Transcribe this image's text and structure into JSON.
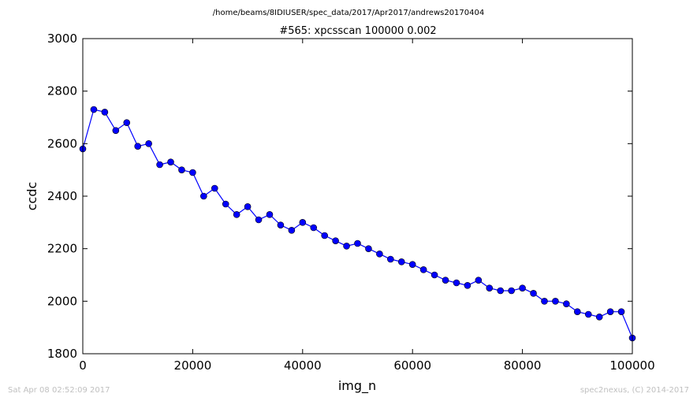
{
  "header": {
    "path": "/home/beams/8IDIUSER/spec_data/2017/Apr2017/andrews20170404"
  },
  "footer": {
    "timestamp": "Sat Apr 08 02:52:09 2017",
    "credit": "spec2nexus, (C) 2014-2017"
  },
  "chart_data": {
    "type": "line",
    "title": "#565: xpcsscan 100000 0.002",
    "xlabel": "img_n",
    "ylabel": "ccdc",
    "xlim": [
      0,
      100000
    ],
    "ylim": [
      1800,
      3000
    ],
    "xticks": [
      "0",
      "20000",
      "40000",
      "60000",
      "80000",
      "100000"
    ],
    "yticks": [
      "1800",
      "2000",
      "2200",
      "2400",
      "2600",
      "2800",
      "3000"
    ],
    "grid": false,
    "marker": "circle",
    "color": "#0000ff",
    "series": [
      {
        "x": [
          0,
          2000,
          4000,
          6000,
          8000,
          10000,
          12000,
          14000,
          16000,
          18000,
          20000,
          22000,
          24000,
          26000,
          28000,
          30000,
          32000,
          34000,
          36000,
          38000,
          40000,
          42000,
          44000,
          46000,
          48000,
          50000,
          52000,
          54000,
          56000,
          58000,
          60000,
          62000,
          64000,
          66000,
          68000,
          70000,
          72000,
          74000,
          76000,
          78000,
          80000,
          82000,
          84000,
          86000,
          88000,
          90000,
          92000,
          94000,
          96000,
          98000,
          100000
        ],
        "y": [
          2580,
          2730,
          2720,
          2650,
          2680,
          2590,
          2600,
          2520,
          2530,
          2500,
          2490,
          2400,
          2430,
          2370,
          2330,
          2360,
          2310,
          2330,
          2290,
          2270,
          2300,
          2280,
          2250,
          2230,
          2210,
          2220,
          2200,
          2180,
          2160,
          2150,
          2140,
          2120,
          2100,
          2080,
          2070,
          2060,
          2080,
          2050,
          2040,
          2040,
          2050,
          2030,
          2000,
          2000,
          1990,
          1960,
          1950,
          1940,
          1960,
          1960,
          1860
        ]
      }
    ]
  }
}
